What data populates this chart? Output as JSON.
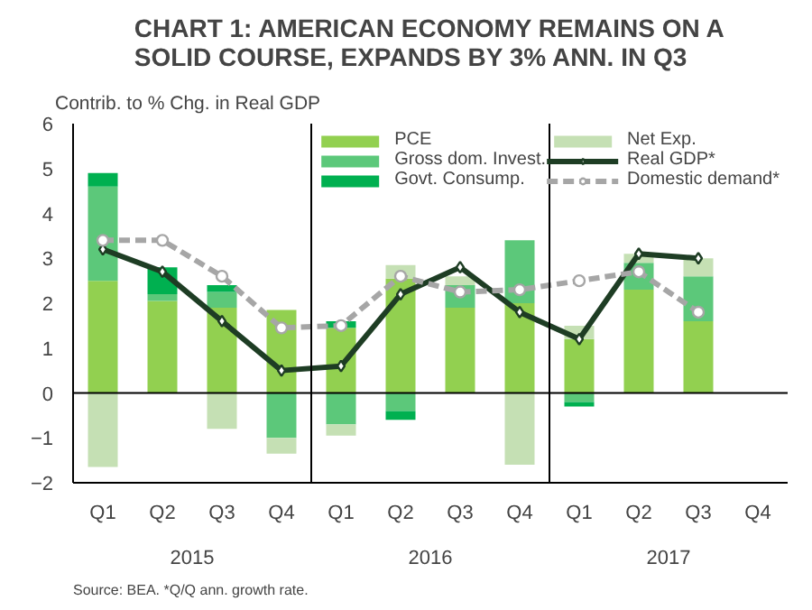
{
  "chart_data": {
    "type": "bar",
    "stacked": true,
    "title": "CHART 1: AMERICAN ECONOMY REMAINS ON A\nSOLID COURSE, EXPANDS BY 3% ANN. IN Q3",
    "ylabel": "Contrib. to % Chg. in Real GDP",
    "categories": [
      "Q1",
      "Q2",
      "Q3",
      "Q4",
      "Q1",
      "Q2",
      "Q3",
      "Q4",
      "Q1",
      "Q2",
      "Q3",
      "Q4"
    ],
    "annotations": [
      "2015",
      "2016",
      "2017",
      "Source: BEA. *Q/Q ann. growth rate."
    ],
    "series": [
      {
        "name": "PCE",
        "color": "#92d050",
        "values": [
          2.5,
          2.05,
          1.9,
          1.85,
          1.45,
          2.55,
          1.9,
          2.0,
          1.2,
          2.3,
          1.6,
          null
        ]
      },
      {
        "name": "Gross dom. Invest.",
        "color": "#5cc87a",
        "values": [
          2.1,
          0.15,
          0.35,
          -1.0,
          -0.7,
          -0.4,
          0.5,
          1.4,
          -0.2,
          0.6,
          1.0,
          null
        ]
      },
      {
        "name": "Govt. Consump.",
        "color": "#00b050",
        "values": [
          0.3,
          0.6,
          0.15,
          0,
          0.15,
          -0.2,
          0,
          0,
          -0.1,
          0,
          0,
          null
        ]
      },
      {
        "name": "Net Exp.",
        "color": "#c5e0b4",
        "values": [
          -1.65,
          0,
          -0.8,
          -0.35,
          -0.25,
          0.3,
          0.2,
          -1.6,
          0.3,
          0.2,
          0.4,
          null
        ]
      },
      {
        "name": "Real GDP*",
        "type": "line",
        "color": "#1e3d24",
        "marker": "diamond",
        "line_style": "solid",
        "values": [
          3.2,
          2.7,
          1.6,
          0.5,
          0.6,
          2.2,
          2.8,
          1.8,
          1.2,
          3.1,
          3.0,
          null
        ]
      },
      {
        "name": "Domestic demand*",
        "type": "line",
        "color": "#a6a6a6",
        "marker": "circle",
        "line_style": "dashed",
        "values": [
          3.4,
          3.4,
          2.6,
          1.45,
          1.5,
          2.6,
          2.25,
          2.3,
          2.5,
          2.7,
          1.8,
          null
        ]
      }
    ],
    "ylim": [
      -2,
      6
    ],
    "yticks": [
      -2,
      -1,
      0,
      1,
      2,
      3,
      4,
      5,
      6
    ],
    "ref_lines": [
      {
        "axis": "y",
        "value": 0,
        "color": "#000000"
      }
    ],
    "legend": "top right",
    "grid": false
  }
}
